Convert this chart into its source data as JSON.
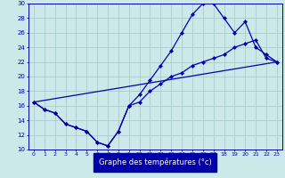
{
  "title": "Graphe des températures (°c)",
  "bg_color": "#cde8e8",
  "line_color": "#0000aa",
  "grid_color": "#aacccc",
  "xmin": -0.5,
  "xmax": 23.5,
  "ymin": 10,
  "ymax": 30,
  "line1_x": [
    0,
    1,
    2,
    3,
    4,
    5,
    6,
    7,
    8,
    9,
    10,
    11,
    12,
    13,
    14,
    15,
    16,
    17,
    18,
    19,
    20,
    21,
    22,
    23
  ],
  "line1_y": [
    16.5,
    15.5,
    15.0,
    13.5,
    13.0,
    12.5,
    11.0,
    10.5,
    12.5,
    16.0,
    16.5,
    18.0,
    19.0,
    20.0,
    20.5,
    21.5,
    22.0,
    22.5,
    23.0,
    24.0,
    24.5,
    25.0,
    22.5,
    22.0
  ],
  "line2_x": [
    0,
    1,
    2,
    3,
    4,
    5,
    6,
    7,
    8,
    9,
    10,
    11,
    12,
    13,
    14,
    15,
    16,
    17,
    18,
    19,
    20,
    21,
    22,
    23
  ],
  "line2_y": [
    16.5,
    15.5,
    15.0,
    13.5,
    13.0,
    12.5,
    11.0,
    10.5,
    12.5,
    16.0,
    17.5,
    19.5,
    21.5,
    23.5,
    26.0,
    28.5,
    30.0,
    30.0,
    28.0,
    26.0,
    27.5,
    24.0,
    23.0,
    22.0
  ],
  "line3_x": [
    0,
    23
  ],
  "line3_y": [
    16.5,
    22.0
  ]
}
